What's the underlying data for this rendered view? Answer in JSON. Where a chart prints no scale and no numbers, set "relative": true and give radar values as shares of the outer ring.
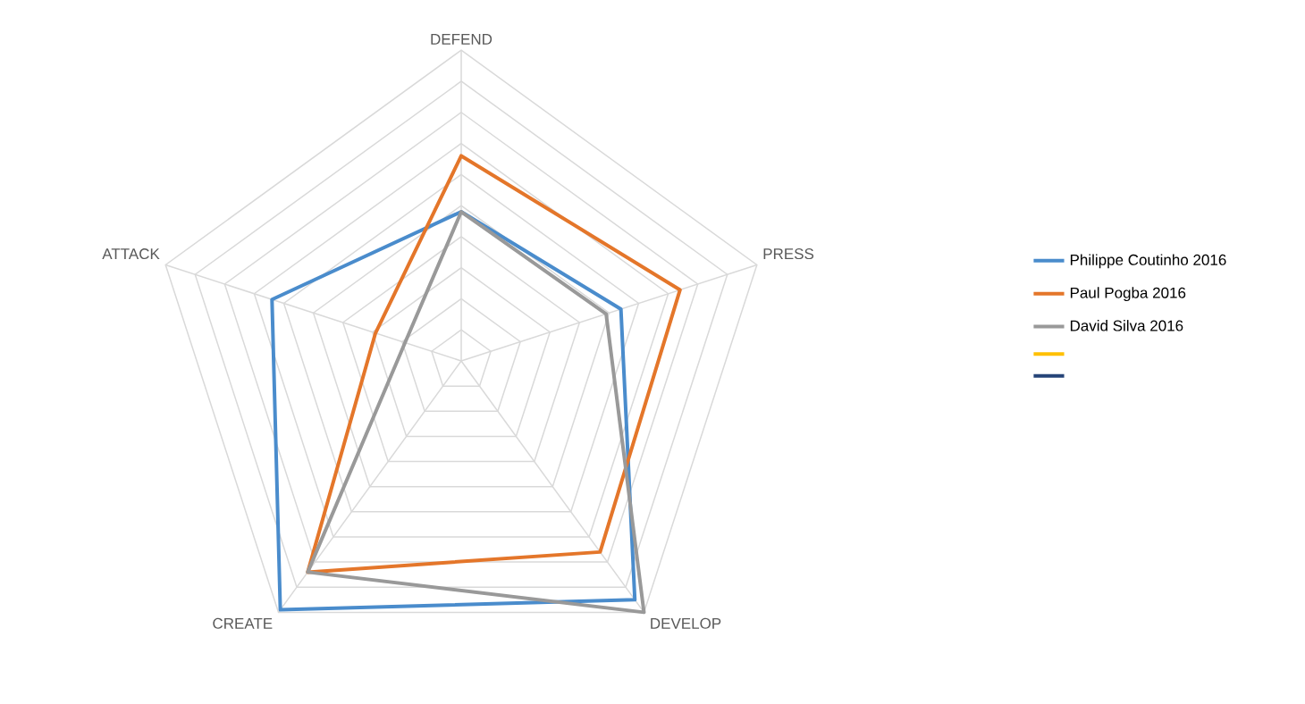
{
  "chart_data": {
    "type": "radar",
    "relative": true,
    "grid": true,
    "legend": "right",
    "categories": [
      "DEFEND",
      "PRESS",
      "DEVELOP",
      "CREATE",
      "ATTACK"
    ],
    "series": [
      {
        "name": "Philippe Coutinho 2016",
        "color": "#4a8ccc",
        "values": [
          0.48,
          0.54,
          0.95,
          0.99,
          0.64
        ]
      },
      {
        "name": "Paul Pogba 2016",
        "color": "#e4762a",
        "values": [
          0.66,
          0.74,
          0.76,
          0.84,
          0.29
        ]
      },
      {
        "name": "David Silva 2016",
        "color": "#999999",
        "values": [
          0.48,
          0.49,
          1.0,
          0.84,
          0.19
        ]
      },
      {
        "color": "#ffc000",
        "values": [
          null,
          null,
          null,
          null,
          null
        ]
      },
      {
        "color": "#264478",
        "values": [
          null,
          null,
          null,
          null,
          null
        ]
      }
    ]
  }
}
